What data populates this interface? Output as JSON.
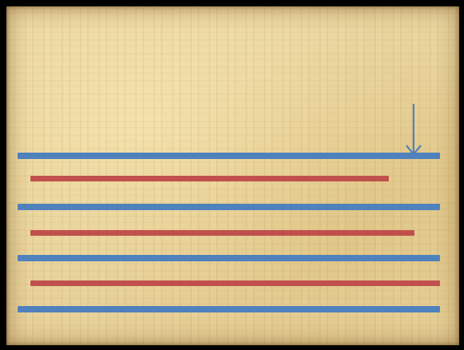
{
  "colors": {
    "blue_line": "#4f81bd",
    "red_line": "#c0504d",
    "background": "#e9d39c",
    "border": "#000000",
    "arrow": "#4f81bd"
  },
  "lines": [
    {
      "color": "blue"
    },
    {
      "color": "red"
    },
    {
      "color": "blue"
    },
    {
      "color": "red"
    },
    {
      "color": "blue"
    },
    {
      "color": "red"
    },
    {
      "color": "blue"
    }
  ],
  "icons": {
    "arrow": "down-arrow-icon"
  }
}
